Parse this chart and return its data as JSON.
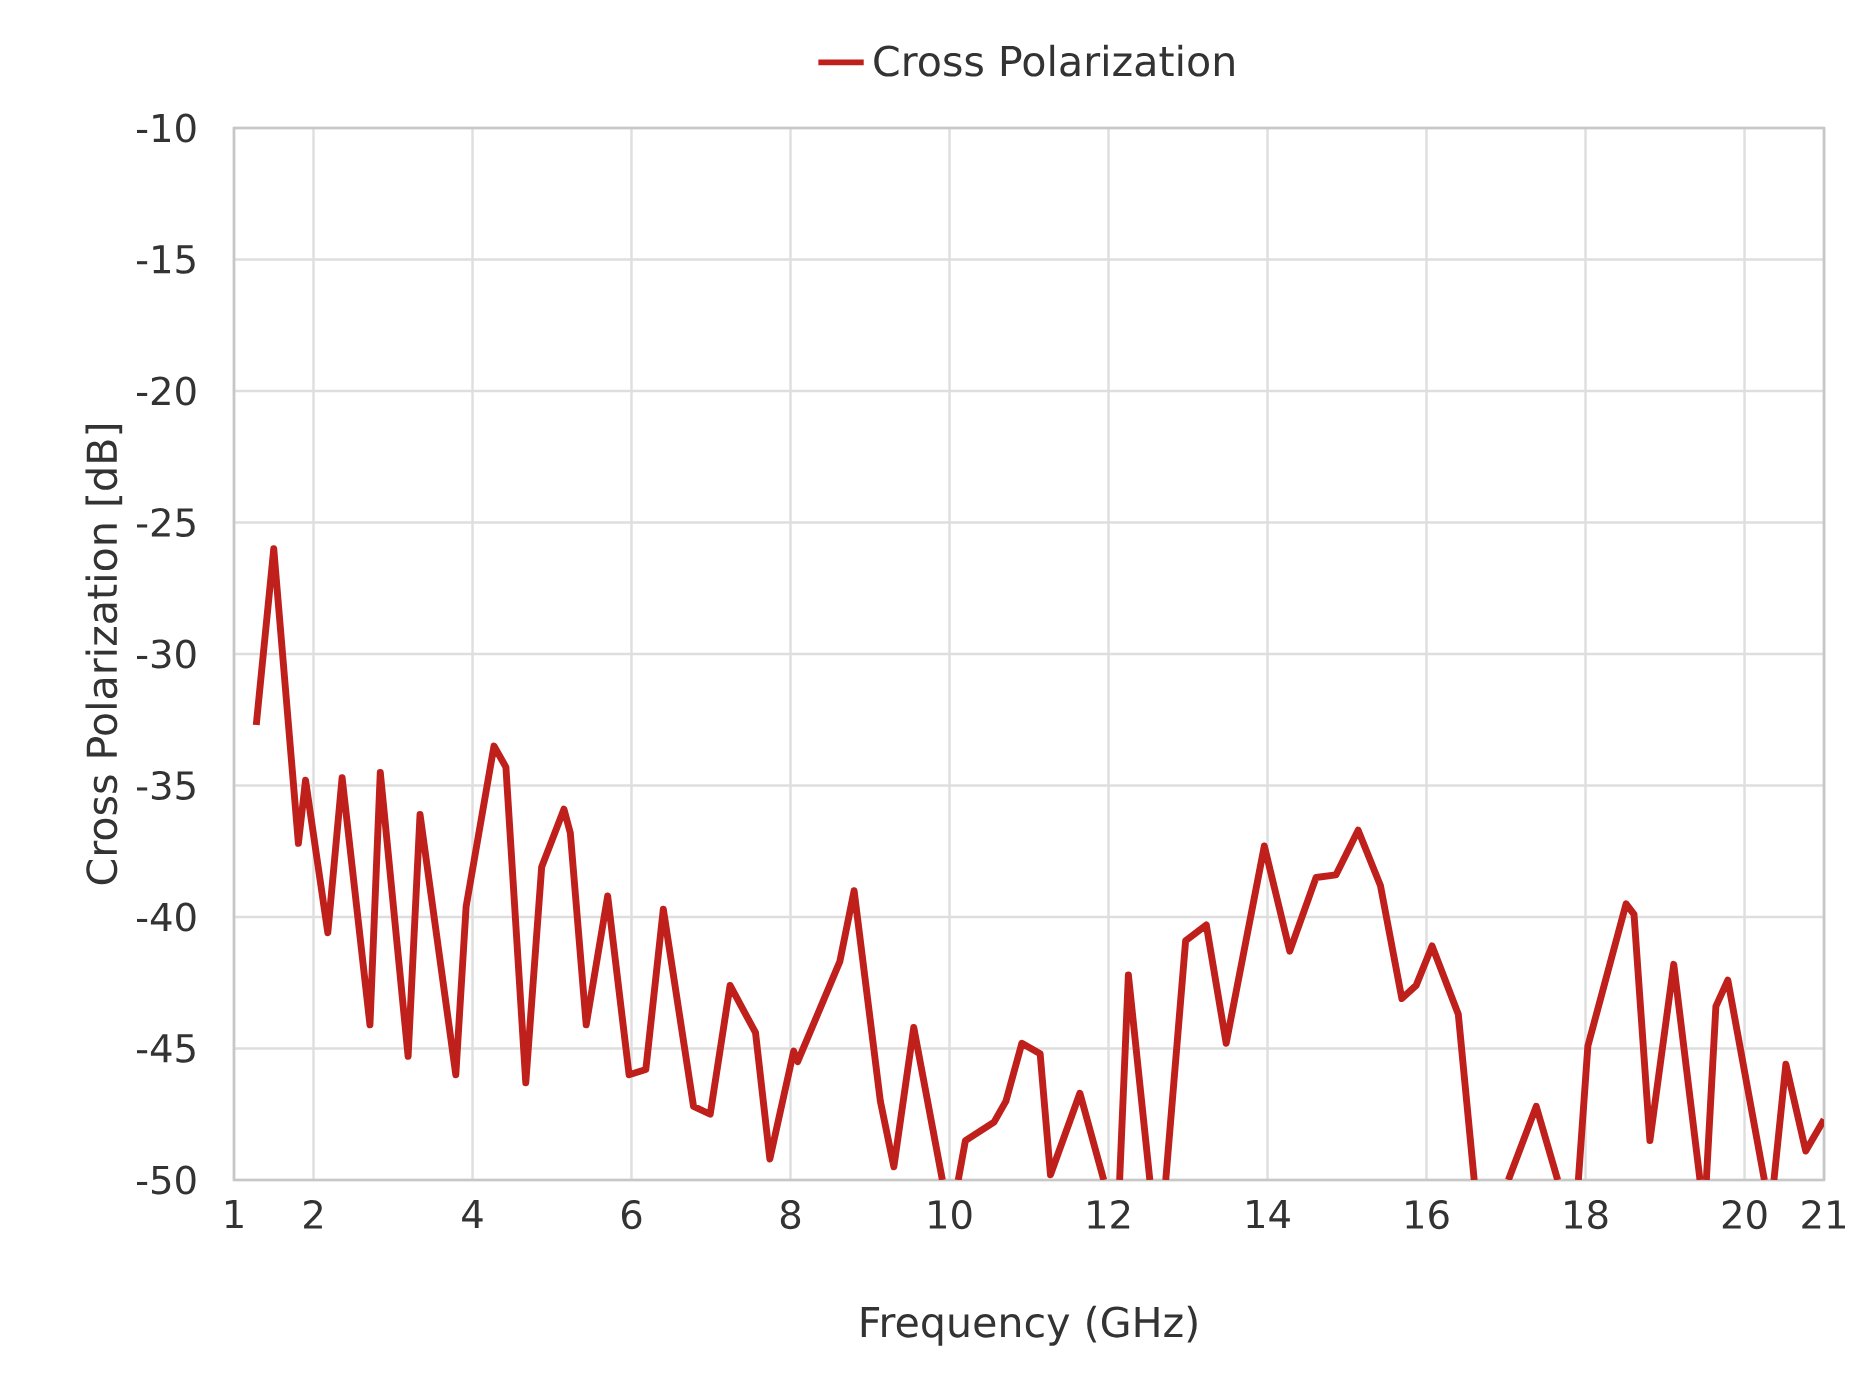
{
  "chart_data": {
    "type": "line",
    "xlabel": "Frequency (GHz)",
    "ylabel": "Cross Polarization [dB]",
    "xlim": [
      1,
      21
    ],
    "xticks": [
      1,
      2,
      4,
      6,
      8,
      10,
      12,
      14,
      16,
      18,
      20,
      21
    ],
    "ylim": [
      -50,
      -10
    ],
    "yticks": [
      -50,
      -45,
      -40,
      -35,
      -30,
      -25,
      -20,
      -15,
      -10
    ],
    "grid": true,
    "legend": "top",
    "marker": "none",
    "line_style": "solid",
    "series": [
      {
        "name": "Cross Polarization",
        "color": "#c0201c",
        "x": [
          1.28,
          1.5,
          1.81,
          1.9,
          2.18,
          2.36,
          2.71,
          2.84,
          3.19,
          3.34,
          3.79,
          3.92,
          4.27,
          4.42,
          4.67,
          4.87,
          5.15,
          5.23,
          5.43,
          5.7,
          5.97,
          6.18,
          6.4,
          6.78,
          6.99,
          7.24,
          7.56,
          7.74,
          8.04,
          8.09,
          8.62,
          8.8,
          9.13,
          9.3,
          9.55,
          9.91,
          10.0,
          10.11,
          10.2,
          10.56,
          10.71,
          10.91,
          11.14,
          11.27,
          11.64,
          11.94,
          12.1,
          12.14,
          12.25,
          12.52,
          12.6,
          12.72,
          12.97,
          13.23,
          13.48,
          13.96,
          14.28,
          14.61,
          14.86,
          15.14,
          15.42,
          15.69,
          15.87,
          16.07,
          16.4,
          16.6,
          16.8,
          17.03,
          17.38,
          17.65,
          17.8,
          17.91,
          18.03,
          18.51,
          18.61,
          18.81,
          19.11,
          19.44,
          19.48,
          19.52,
          19.64,
          19.79,
          20.25,
          20.3,
          20.37,
          20.52,
          20.77,
          21.0
        ],
        "values": [
          -32.7,
          -26.0,
          -37.2,
          -34.8,
          -40.6,
          -34.7,
          -44.1,
          -34.5,
          -45.3,
          -36.1,
          -46.0,
          -39.6,
          -33.5,
          -34.3,
          -46.3,
          -38.1,
          -35.9,
          -36.8,
          -44.1,
          -39.2,
          -46.0,
          -45.8,
          -39.7,
          -47.2,
          -47.5,
          -42.6,
          -44.4,
          -49.2,
          -45.1,
          -45.5,
          -41.7,
          -39.0,
          -47.0,
          -49.5,
          -44.2,
          -50,
          null,
          -50,
          -48.5,
          -47.8,
          -47.0,
          -44.8,
          -45.2,
          -49.8,
          -46.7,
          -50,
          null,
          -50,
          -42.2,
          -50,
          null,
          -50,
          -40.9,
          -40.3,
          -44.8,
          -37.3,
          -41.3,
          -38.5,
          -38.4,
          -36.7,
          -38.8,
          -43.1,
          -42.6,
          -41.1,
          -43.7,
          -50,
          null,
          -50,
          -47.2,
          -50,
          null,
          -50,
          -44.9,
          -39.5,
          -39.9,
          -48.5,
          -41.8,
          -50,
          null,
          -50,
          -43.4,
          -42.4,
          -50,
          null,
          -50,
          -45.6,
          -48.9,
          -47.7
        ]
      }
    ]
  }
}
